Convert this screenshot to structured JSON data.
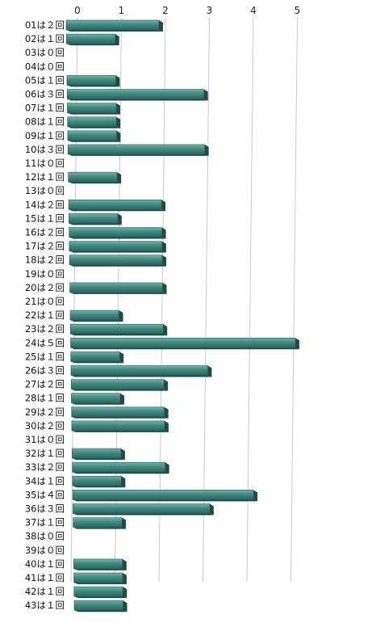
{
  "chart_data": {
    "type": "bar",
    "orientation": "horizontal",
    "style": "3d",
    "bar_color": "#3f8a80",
    "bar_shadow_color": "#1f4a45",
    "grid": true,
    "xlim": [
      0,
      5
    ],
    "xticks": [
      "0",
      "1",
      "2",
      "3",
      "4",
      "5"
    ],
    "categories": [
      "01は２回",
      "02は１回",
      "03は０回",
      "04は０回",
      "05は１回",
      "06は３回",
      "07は１回",
      "08は１回",
      "09は１回",
      "10は３回",
      "11は０回",
      "12は１回",
      "13は０回",
      "14は２回",
      "15は１回",
      "16は２回",
      "17は２回",
      "18は２回",
      "19は０回",
      "20は２回",
      "21は０回",
      "22は１回",
      "23は２回",
      "24は５回",
      "25は１回",
      "26は３回",
      "27は２回",
      "28は１回",
      "29は２回",
      "30は２回",
      "31は０回",
      "32は１回",
      "33は２回",
      "34は１回",
      "35は４回",
      "36は３回",
      "37は１回",
      "38は０回",
      "39は０回",
      "40は１回",
      "41は１回",
      "42は１回",
      "43は１回"
    ],
    "values": [
      2,
      1,
      0,
      0,
      1,
      3,
      1,
      1,
      1,
      3,
      0,
      1,
      0,
      2,
      1,
      2,
      2,
      2,
      0,
      2,
      0,
      1,
      2,
      5,
      1,
      3,
      2,
      1,
      2,
      2,
      0,
      1,
      2,
      1,
      4,
      3,
      1,
      0,
      0,
      1,
      1,
      1,
      1
    ]
  }
}
